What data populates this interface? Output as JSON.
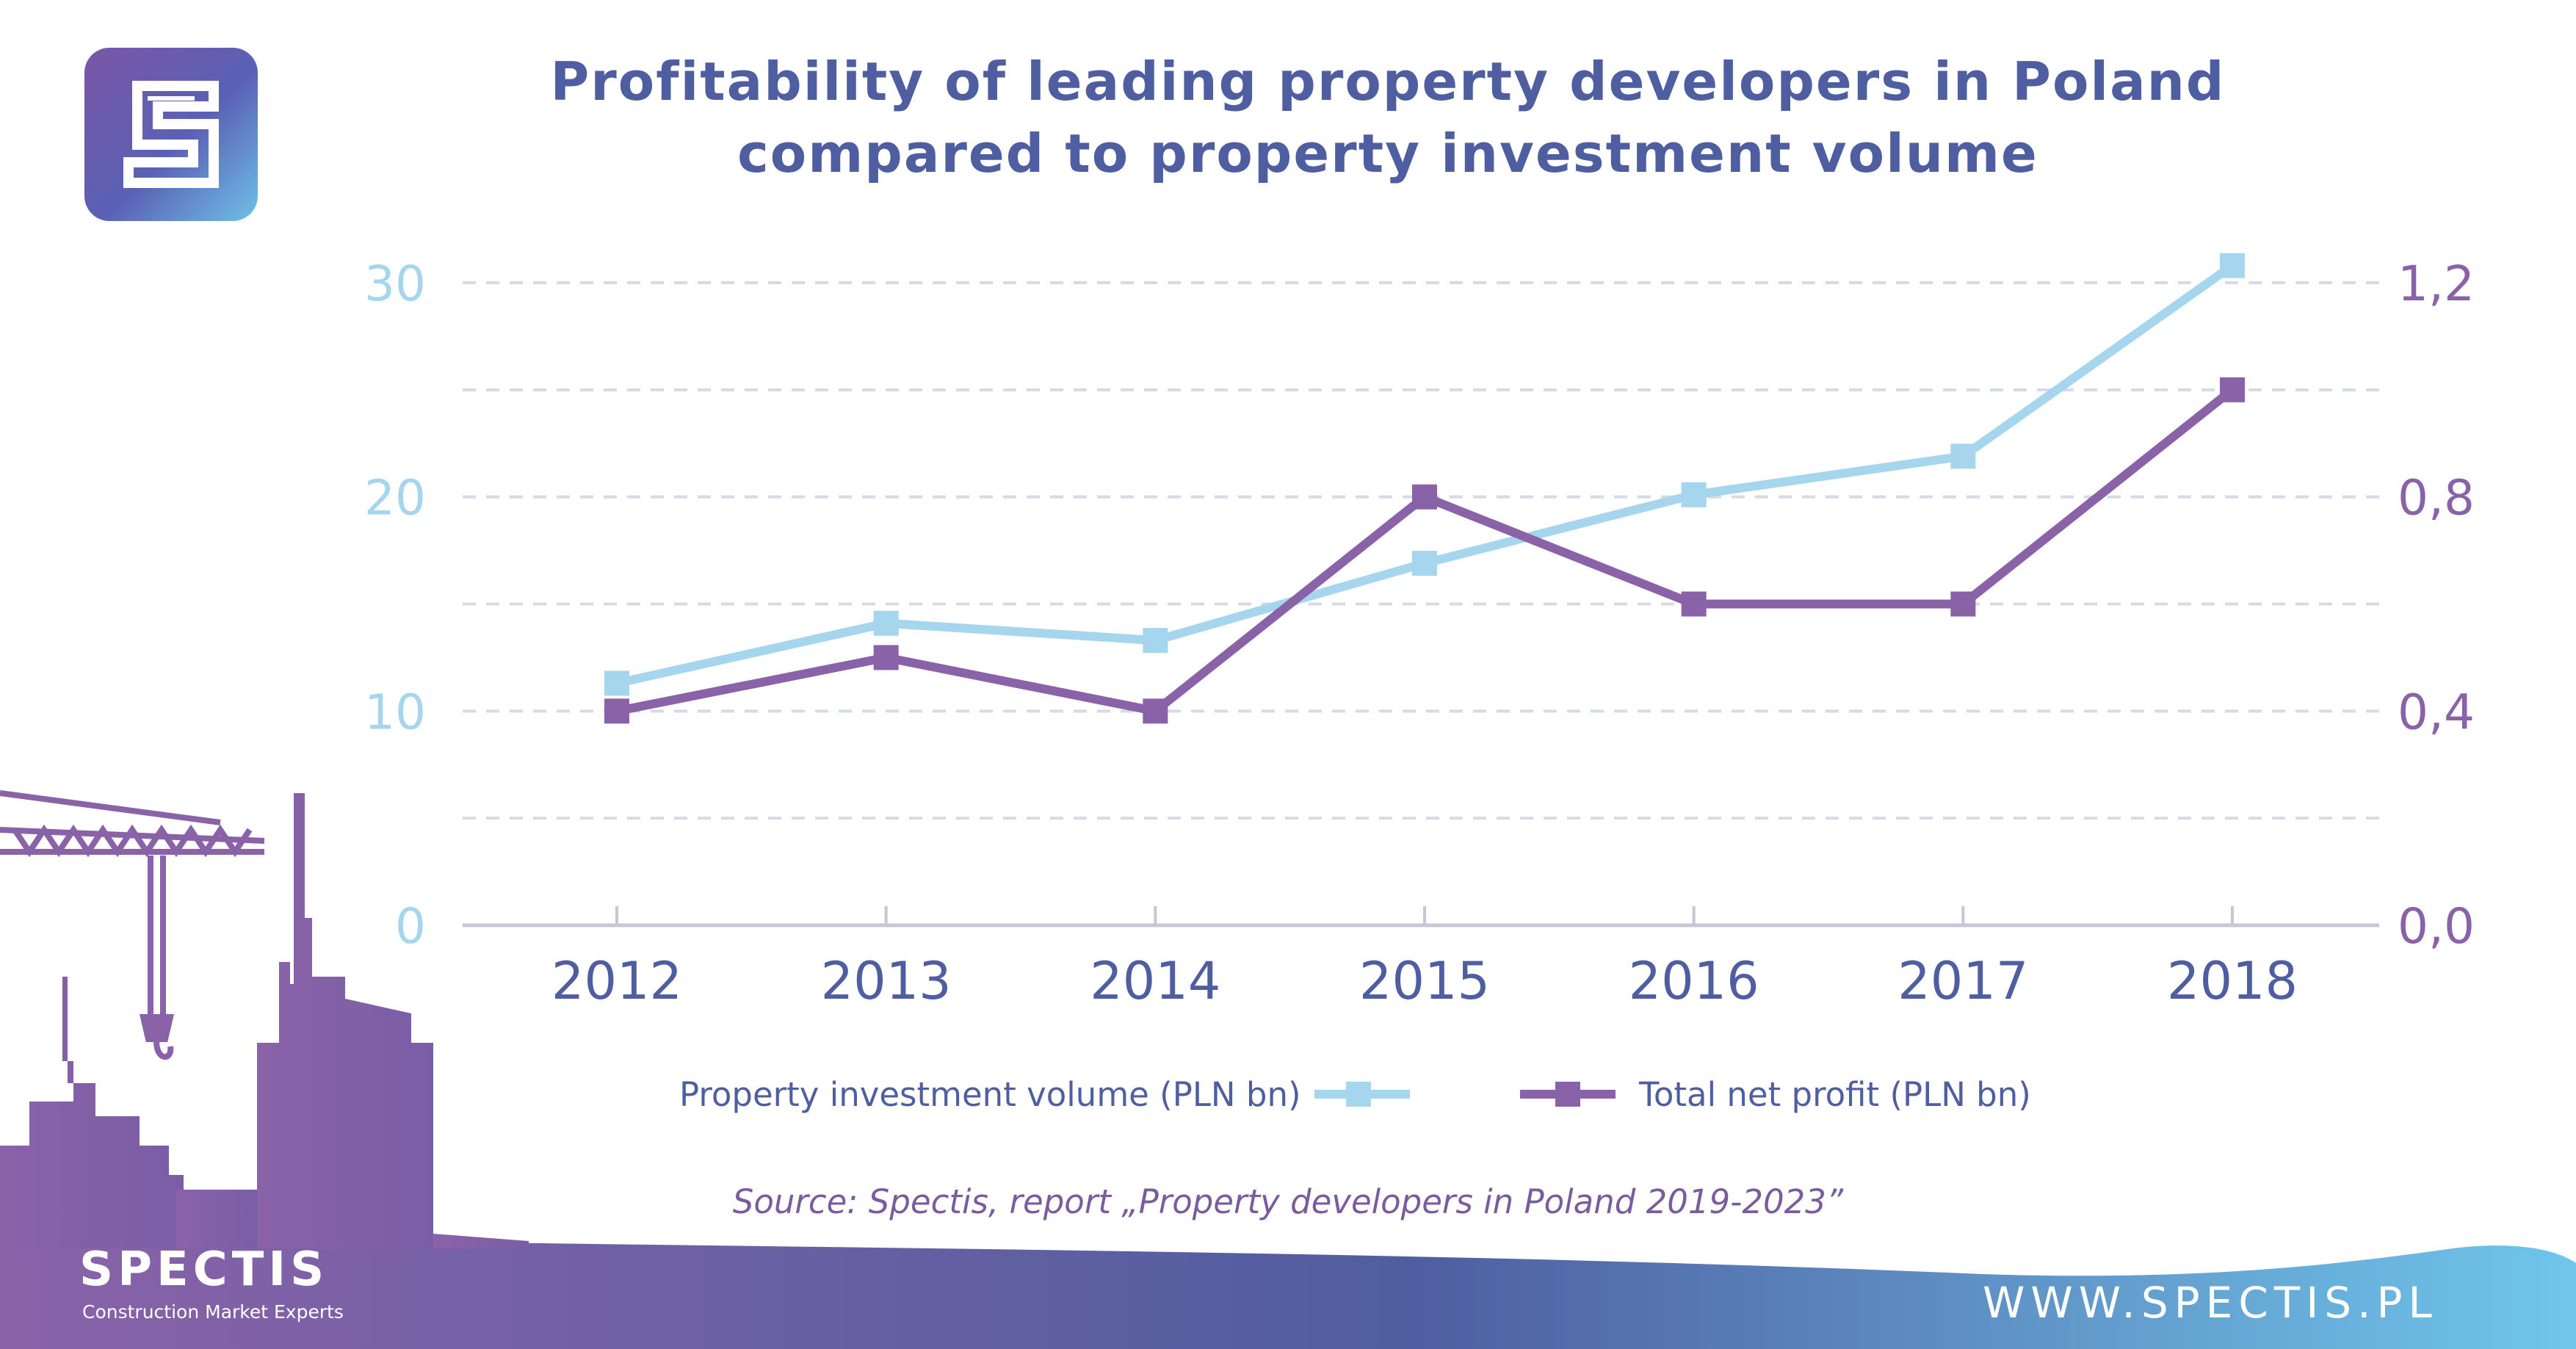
{
  "title": {
    "line1": "Profitability of leading property developers in Poland",
    "line2": "compared to property investment volume"
  },
  "chart_data": {
    "type": "line",
    "categories": [
      "2012",
      "2013",
      "2014",
      "2015",
      "2016",
      "2017",
      "2018"
    ],
    "series": [
      {
        "name": "Property investment volume (PLN bn)",
        "axis": "left",
        "color": "#a6d5ee",
        "values": [
          11.3,
          14.1,
          13.3,
          16.9,
          20.1,
          21.9,
          30.8
        ]
      },
      {
        "name": "Total net profit (PLN bn)",
        "axis": "right",
        "color": "#8a62a8",
        "values": [
          0.4,
          0.5,
          0.4,
          0.8,
          0.6,
          0.6,
          1.0
        ]
      }
    ],
    "y_left": {
      "min": 0,
      "max": 30,
      "ticks": [
        {
          "value": 0,
          "label": "0"
        },
        {
          "value": 10,
          "label": "10"
        },
        {
          "value": 20,
          "label": "20"
        },
        {
          "value": 30,
          "label": "30"
        }
      ],
      "color": "#a6d5ee"
    },
    "y_right": {
      "min": 0,
      "max": 1.2,
      "ticks": [
        {
          "value": 0,
          "label": "0,0"
        },
        {
          "value": 0.4,
          "label": "0,4"
        },
        {
          "value": 0.8,
          "label": "0,8"
        },
        {
          "value": 1.2,
          "label": "1,2"
        }
      ],
      "color": "#8a62a8"
    },
    "gridlines": [
      5,
      10,
      15,
      20,
      25,
      30
    ],
    "grid": true,
    "legend_position": "bottom"
  },
  "source": "Source: Spectis, report „Property developers in Poland 2019-2023”",
  "brand": {
    "name": "SPECTIS",
    "tagline": "Construction Market Experts",
    "website": "WWW.SPECTIS.PL"
  },
  "colors": {
    "title": "#4f5ea0",
    "axis_text": "#4f5ea0",
    "investment": "#a6d5ee",
    "profit": "#8a62a8",
    "source": "#7a5c9e"
  }
}
